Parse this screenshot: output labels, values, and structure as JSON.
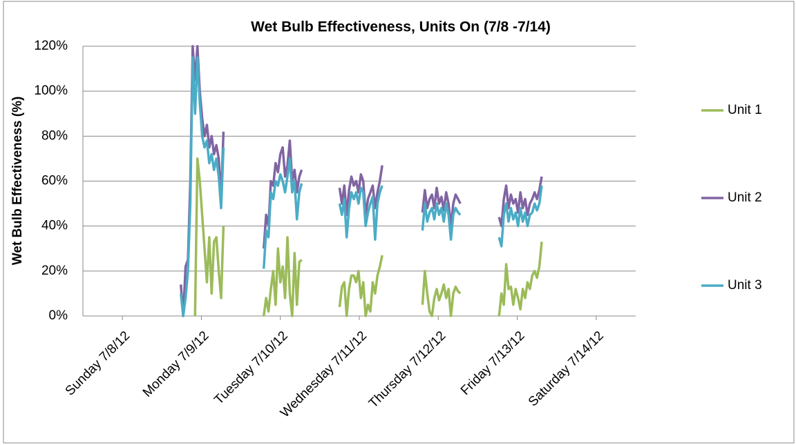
{
  "chart_data": {
    "type": "line",
    "title": "Wet Bulb Effectiveness, Units On (7/8 -7/14)",
    "y_label": "Wet Bulb Effectiveness (%)",
    "x": [
      1.24,
      1.27,
      1.3,
      1.33,
      1.36,
      1.39,
      1.42,
      1.45,
      1.48,
      1.51,
      1.54,
      1.57,
      1.6,
      1.63,
      1.66,
      1.69,
      1.72,
      1.75,
      1.78,
      2.0,
      2.29,
      2.32,
      2.35,
      2.38,
      2.41,
      2.44,
      2.47,
      2.5,
      2.53,
      2.56,
      2.59,
      2.62,
      2.65,
      2.68,
      2.71,
      2.74,
      2.77,
      3.0,
      3.25,
      3.28,
      3.31,
      3.34,
      3.37,
      3.4,
      3.43,
      3.46,
      3.49,
      3.52,
      3.55,
      3.58,
      3.61,
      3.64,
      3.67,
      3.7,
      3.73,
      3.76,
      3.79,
      4.0,
      4.3,
      4.33,
      4.36,
      4.39,
      4.42,
      4.45,
      4.48,
      4.51,
      4.54,
      4.57,
      4.6,
      4.63,
      4.66,
      4.69,
      4.72,
      4.75,
      4.78,
      5.0,
      5.27,
      5.3,
      5.33,
      5.36,
      5.39,
      5.42,
      5.45,
      5.48,
      5.51,
      5.54,
      5.57,
      5.6,
      5.63,
      5.66,
      5.69,
      5.72,
      5.75,
      5.78,
      5.81
    ],
    "series": [
      {
        "name": "Unit 1",
        "color": "#9bbb59",
        "values": [
          null,
          null,
          null,
          null,
          null,
          null,
          0,
          70,
          60,
          45,
          30,
          15,
          35,
          10,
          33,
          35,
          20,
          8,
          40,
          null,
          0,
          8,
          2,
          12,
          20,
          5,
          30,
          15,
          22,
          8,
          35,
          10,
          0,
          28,
          5,
          24,
          25,
          null,
          4,
          13,
          15,
          0,
          12,
          18,
          18,
          15,
          20,
          8,
          15,
          0,
          5,
          2,
          15,
          10,
          18,
          22,
          27,
          null,
          5,
          20,
          10,
          2,
          0,
          8,
          12,
          7,
          10,
          14,
          8,
          12,
          0,
          10,
          13,
          11,
          10,
          null,
          0,
          10,
          5,
          23,
          12,
          13,
          5,
          12,
          8,
          3,
          12,
          8,
          15,
          12,
          18,
          20,
          17,
          22,
          33
        ]
      },
      {
        "name": "Unit 2",
        "color": "#8064a2",
        "values": [
          14,
          0,
          22,
          25,
          60,
          120,
          105,
          120,
          100,
          88,
          80,
          85,
          75,
          80,
          72,
          76,
          70,
          52,
          82,
          null,
          30,
          45,
          40,
          60,
          58,
          68,
          64,
          72,
          75,
          62,
          67,
          78,
          60,
          65,
          55,
          62,
          65,
          null,
          57,
          50,
          58,
          45,
          56,
          62,
          58,
          60,
          55,
          63,
          60,
          45,
          52,
          55,
          58,
          48,
          55,
          60,
          67,
          null,
          46,
          56,
          48,
          52,
          54,
          48,
          57,
          50,
          53,
          47,
          55,
          50,
          40,
          50,
          54,
          52,
          50,
          null,
          44,
          40,
          52,
          58,
          48,
          54,
          50,
          52,
          46,
          55,
          48,
          52,
          45,
          50,
          52,
          55,
          52,
          56,
          62
        ]
      },
      {
        "name": "Unit 3",
        "color": "#4bacc6",
        "values": [
          10,
          0,
          8,
          20,
          50,
          115,
          90,
          115,
          95,
          80,
          75,
          78,
          68,
          72,
          65,
          70,
          62,
          48,
          75,
          null,
          21,
          38,
          35,
          55,
          52,
          60,
          58,
          63,
          60,
          55,
          62,
          70,
          55,
          60,
          43,
          55,
          59,
          null,
          50,
          45,
          52,
          35,
          48,
          55,
          52,
          55,
          50,
          57,
          55,
          40,
          46,
          50,
          53,
          34,
          50,
          55,
          58,
          null,
          38,
          50,
          42,
          46,
          48,
          43,
          50,
          45,
          48,
          42,
          50,
          45,
          34,
          45,
          48,
          46,
          45,
          null,
          35,
          31,
          45,
          50,
          42,
          48,
          43,
          46,
          40,
          48,
          42,
          46,
          40,
          45,
          46,
          50,
          47,
          50,
          58
        ]
      }
    ],
    "xlim": [
      0,
      7
    ],
    "xticks": [
      {
        "value": 0.5,
        "label": "Sunday 7/8/12"
      },
      {
        "value": 1.5,
        "label": "Monday 7/9/12"
      },
      {
        "value": 2.5,
        "label": "Tuesday 7/10/12"
      },
      {
        "value": 3.5,
        "label": "Wednesday 7/11/12"
      },
      {
        "value": 4.5,
        "label": "Thursday 7/12/12"
      },
      {
        "value": 5.5,
        "label": "Friday 7/13/12"
      },
      {
        "value": 6.5,
        "label": "Saturday 7/14/12"
      }
    ],
    "ylim": [
      0,
      120
    ],
    "yticks": [
      {
        "value": 0,
        "label": "0%"
      },
      {
        "value": 20,
        "label": "20%"
      },
      {
        "value": 40,
        "label": "40%"
      },
      {
        "value": 60,
        "label": "60%"
      },
      {
        "value": 80,
        "label": "80%"
      },
      {
        "value": 100,
        "label": "100%"
      },
      {
        "value": 120,
        "label": "120%"
      }
    ],
    "grid": true,
    "legend": "right"
  }
}
